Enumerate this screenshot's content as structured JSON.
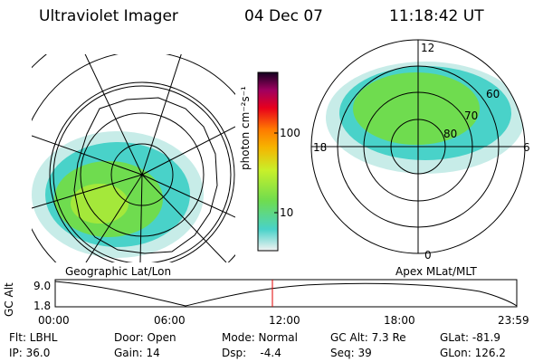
{
  "header": {
    "instrument": "Ultraviolet Imager",
    "date": "04 Dec 07",
    "time": "11:18:42 UT"
  },
  "left_panel": {
    "caption": "Geographic Lat/Lon"
  },
  "right_panel": {
    "caption": "Apex MLat/MLT",
    "mlt_labels": {
      "top": "12",
      "left": "18",
      "right": "6",
      "bottom": "0"
    },
    "mlat_labels": [
      "60",
      "70",
      "80"
    ]
  },
  "colorbar": {
    "unit_label": "photon cm⁻²s⁻¹",
    "ticks": [
      "100",
      "10"
    ],
    "scale": "log",
    "colors": [
      "#f2f2f2",
      "#49d2c9",
      "#6fdc4f",
      "#c8f02a",
      "#f6b400",
      "#ff7a00",
      "#e8001c",
      "#a00060",
      "#140020"
    ]
  },
  "altitude_plot": {
    "y_label": "GC Alt",
    "y_ticks": [
      "9.0",
      "1.8"
    ],
    "x_ticks": [
      "00:00",
      "06:00",
      "12:00",
      "18:00",
      "23:59"
    ],
    "current_marker": "11:18"
  },
  "info": {
    "flt": "Flt: LBHL",
    "ip": "IP: 36.0",
    "door": "Door: Open",
    "gain": "Gain: 14",
    "mode": "Mode: Normal",
    "dsp": "Dsp:    -4.4",
    "gc_alt": "GC Alt: 7.3 Re",
    "seq": "Seq: 39",
    "glat": "GLat: -81.9",
    "glon": "GLon: 126.2"
  }
}
